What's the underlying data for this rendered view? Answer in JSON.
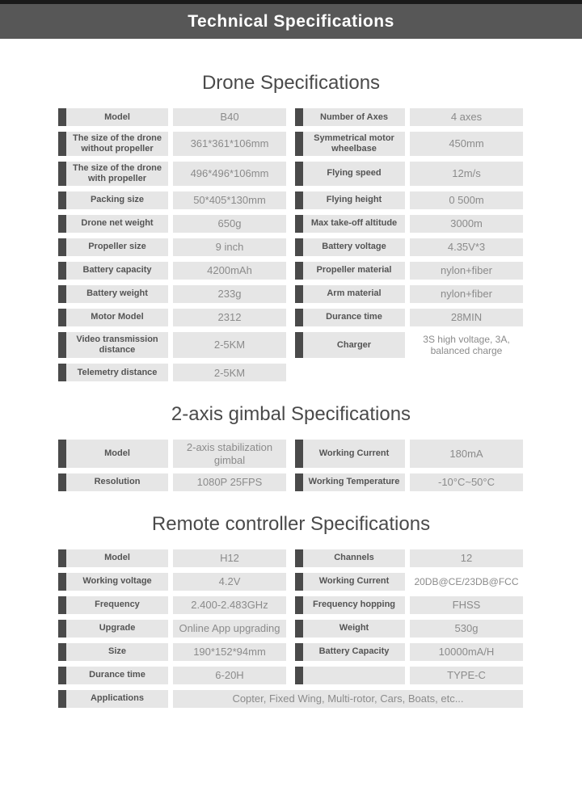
{
  "header": {
    "title": "Technical Specifications"
  },
  "colors": {
    "top_strip": "#1a1a1a",
    "header_bg": "#575757",
    "cell_bg": "#e6e6e6",
    "label_bar": "#4a4a4a",
    "label_text": "#545454",
    "value_text": "#8b8b8b",
    "heading_text": "#4a4a4a"
  },
  "sections": [
    {
      "title": "Drone Specifications",
      "rows": [
        [
          {
            "label": "Model",
            "value": "B40"
          },
          {
            "label": "Number of Axes",
            "value": "4 axes"
          }
        ],
        [
          {
            "label": "The size of the drone without propeller",
            "value": "361*361*106mm"
          },
          {
            "label": "Symmetrical motor wheelbase",
            "value": "450mm"
          }
        ],
        [
          {
            "label": "The size of the drone with propeller",
            "value": "496*496*106mm"
          },
          {
            "label": "Flying speed",
            "value": "12m/s"
          }
        ],
        [
          {
            "label": "Packing size",
            "value": "50*405*130mm"
          },
          {
            "label": "Flying height",
            "value": "0 500m"
          }
        ],
        [
          {
            "label": "Drone net weight",
            "value": "650g"
          },
          {
            "label": "Max take-off altitude",
            "value": "3000m"
          }
        ],
        [
          {
            "label": "Propeller size",
            "value": "9 inch"
          },
          {
            "label": "Battery voltage",
            "value": "4.35V*3"
          }
        ],
        [
          {
            "label": "Battery capacity",
            "value": "4200mAh"
          },
          {
            "label": "Propeller material",
            "value": "nylon+fiber"
          }
        ],
        [
          {
            "label": "Battery weight",
            "value": "233g"
          },
          {
            "label": "Arm material",
            "value": "nylon+fiber"
          }
        ],
        [
          {
            "label": "Motor Model",
            "value": "2312"
          },
          {
            "label": "Durance time",
            "value": "28MIN"
          }
        ],
        [
          {
            "label": "Video transmission distance",
            "value": "2-5KM"
          },
          {
            "label": "Charger",
            "value": "3S high voltage, 3A, balanced charge",
            "plain": true
          }
        ],
        [
          {
            "label": "Telemetry distance",
            "value": "2-5KM"
          }
        ]
      ]
    },
    {
      "title": "2-axis gimbal Specifications",
      "rows": [
        [
          {
            "label": "Model",
            "value": "2-axis stabilization gimbal"
          },
          {
            "label": "Working Current",
            "value": "180mA"
          }
        ],
        [
          {
            "label": "Resolution",
            "value": "1080P 25FPS"
          },
          {
            "label": "Working Temperature",
            "value": "-10°C~50°C"
          }
        ]
      ]
    },
    {
      "title": "Remote controller Specifications",
      "rows": [
        [
          {
            "label": "Model",
            "value": "H12"
          },
          {
            "label": "Channels",
            "value": "12"
          }
        ],
        [
          {
            "label": "Working voltage",
            "value": "4.2V"
          },
          {
            "label": "Working Current",
            "value": "20DB@CE/23DB@FCC",
            "plain": true
          }
        ],
        [
          {
            "label": "Frequency",
            "value": "2.400-2.483GHz"
          },
          {
            "label": "Frequency hopping",
            "value": "FHSS"
          }
        ],
        [
          {
            "label": "Upgrade",
            "value": "Online App upgrading"
          },
          {
            "label": "Weight",
            "value": "530g"
          }
        ],
        [
          {
            "label": "Size",
            "value": "190*152*94mm"
          },
          {
            "label": "Battery Capacity",
            "value": "10000mA/H"
          }
        ],
        [
          {
            "label": "Durance time",
            "value": "6-20H"
          },
          {
            "label": "",
            "value": "TYPE-C"
          }
        ],
        [
          {
            "label": "Applications",
            "value": "Copter, Fixed Wing, Multi-rotor, Cars, Boats, etc...",
            "wide": true
          }
        ]
      ]
    }
  ]
}
